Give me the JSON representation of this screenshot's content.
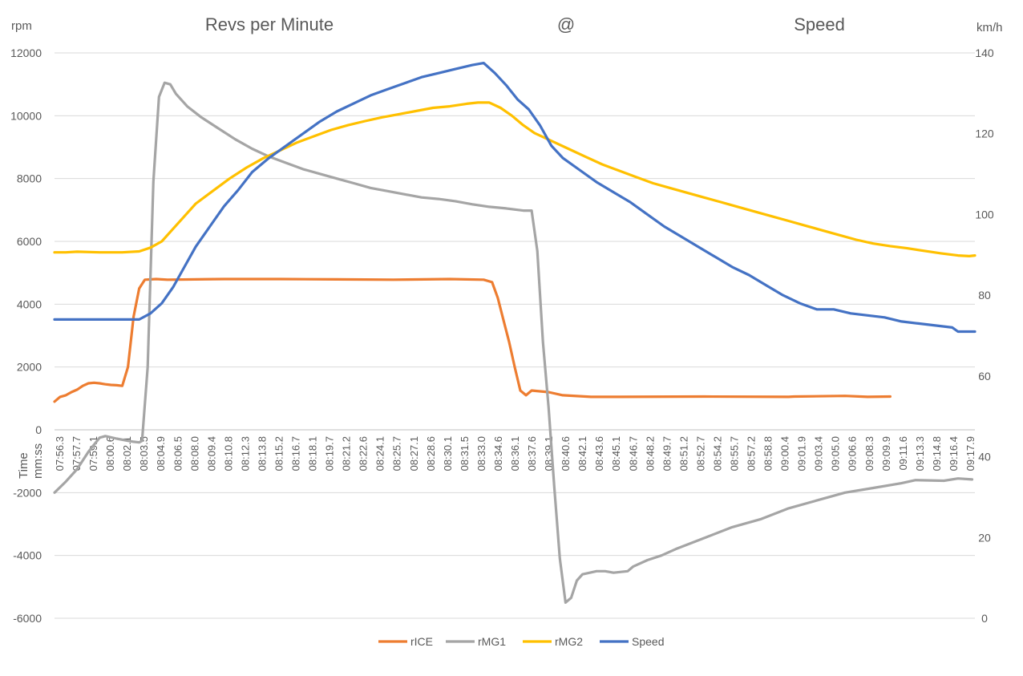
{
  "chart_data": {
    "type": "line",
    "title_parts": [
      "Revs per Minute",
      "@",
      "Speed"
    ],
    "ylabel_left": "rpm",
    "ylabel_right": "km/h",
    "xlabel": "Time mm:ss",
    "xlabel_parts": [
      "Time",
      "mm:ss"
    ],
    "ylim_left": [
      -6000,
      12000
    ],
    "ylim_right": [
      0,
      140
    ],
    "yticks_left": [
      -6000,
      -4000,
      -2000,
      0,
      2000,
      4000,
      6000,
      8000,
      10000,
      12000
    ],
    "yticks_right": [
      0,
      20,
      40,
      60,
      80,
      100,
      120,
      140
    ],
    "ytick_labels_left": [
      "-6000",
      "-4000",
      "-2000",
      "0",
      "2000",
      "4000",
      "6000",
      "8000",
      "10000",
      "12000"
    ],
    "ytick_labels_right": [
      "0",
      "20",
      "40",
      "60",
      "80",
      "100",
      "120",
      "140"
    ],
    "x_tick_labels": [
      "07:56.3",
      "07:57.7",
      "07:59.1",
      "08:00.6",
      "08:02.1",
      "08:03.5",
      "08:04.9",
      "08:06.5",
      "08:08.0",
      "08:09.4",
      "08:10.8",
      "08:12.3",
      "08:13.8",
      "08:15.2",
      "08:16.7",
      "08:18.1",
      "08:19.7",
      "08:21.2",
      "08:22.6",
      "08:24.1",
      "08:25.7",
      "08:27.1",
      "08:28.6",
      "08:30.1",
      "08:31.5",
      "08:33.0",
      "08:34.6",
      "08:36.1",
      "08:37.6",
      "08:39.1",
      "08:40.6",
      "08:42.1",
      "08:43.6",
      "08:45.1",
      "08:46.7",
      "08:48.2",
      "08:49.7",
      "08:51.2",
      "08:52.7",
      "08:54.2",
      "08:55.7",
      "08:57.2",
      "08:58.8",
      "09:00.4",
      "09:01.9",
      "09:03.4",
      "09:05.0",
      "09:06.6",
      "09:08.3",
      "09:09.9",
      "09:11.6",
      "09:13.3",
      "09:14.8",
      "09:16.4",
      "09:17.9"
    ],
    "grid": true,
    "legend_position": "bottom",
    "series": [
      {
        "name": "rICE",
        "axis": "left",
        "color": "#ED7D31",
        "points": [
          [
            0,
            900
          ],
          [
            2,
            1050
          ],
          [
            4,
            1100
          ],
          [
            6,
            1200
          ],
          [
            8,
            1280
          ],
          [
            10,
            1400
          ],
          [
            12,
            1480
          ],
          [
            14,
            1500
          ],
          [
            16,
            1480
          ],
          [
            18,
            1450
          ],
          [
            20,
            1430
          ],
          [
            22,
            1420
          ],
          [
            24,
            1400
          ],
          [
            26,
            2000
          ],
          [
            28,
            3600
          ],
          [
            30,
            4500
          ],
          [
            32,
            4780
          ],
          [
            36,
            4800
          ],
          [
            40,
            4780
          ],
          [
            60,
            4800
          ],
          [
            80,
            4800
          ],
          [
            100,
            4790
          ],
          [
            120,
            4780
          ],
          [
            140,
            4800
          ],
          [
            152,
            4780
          ],
          [
            155,
            4700
          ],
          [
            157,
            4200
          ],
          [
            159,
            3500
          ],
          [
            161,
            2800
          ],
          [
            163,
            2000
          ],
          [
            165,
            1250
          ],
          [
            167,
            1100
          ],
          [
            169,
            1250
          ],
          [
            175,
            1200
          ],
          [
            180,
            1100
          ],
          [
            190,
            1050
          ],
          [
            200,
            1050
          ],
          [
            230,
            1060
          ],
          [
            260,
            1050
          ],
          [
            262,
            1060
          ],
          [
            280,
            1080
          ],
          [
            288,
            1050
          ],
          [
            296,
            1060
          ]
        ]
      },
      {
        "name": "rMG1",
        "axis": "left",
        "color": "#A5A5A5",
        "points": [
          [
            0,
            -2000
          ],
          [
            4,
            -1650
          ],
          [
            8,
            -1250
          ],
          [
            12,
            -700
          ],
          [
            16,
            -250
          ],
          [
            18,
            -200
          ],
          [
            22,
            -280
          ],
          [
            26,
            -350
          ],
          [
            28,
            -380
          ],
          [
            30,
            -400
          ],
          [
            31,
            -350
          ],
          [
            33,
            2000
          ],
          [
            35,
            7900
          ],
          [
            37,
            10600
          ],
          [
            39,
            11050
          ],
          [
            41,
            11000
          ],
          [
            43,
            10700
          ],
          [
            47,
            10300
          ],
          [
            52,
            9950
          ],
          [
            58,
            9600
          ],
          [
            64,
            9250
          ],
          [
            70,
            8950
          ],
          [
            76,
            8700
          ],
          [
            82,
            8500
          ],
          [
            88,
            8300
          ],
          [
            94,
            8150
          ],
          [
            100,
            8000
          ],
          [
            106,
            7850
          ],
          [
            112,
            7700
          ],
          [
            118,
            7600
          ],
          [
            124,
            7500
          ],
          [
            130,
            7400
          ],
          [
            136,
            7350
          ],
          [
            142,
            7280
          ],
          [
            148,
            7180
          ],
          [
            154,
            7100
          ],
          [
            160,
            7050
          ],
          [
            166,
            6980
          ],
          [
            169,
            6980
          ],
          [
            171,
            5700
          ],
          [
            173,
            2800
          ],
          [
            175,
            700
          ],
          [
            177,
            -1800
          ],
          [
            179,
            -4100
          ],
          [
            181,
            -5500
          ],
          [
            183,
            -5350
          ],
          [
            185,
            -4800
          ],
          [
            187,
            -4600
          ],
          [
            192,
            -4500
          ],
          [
            195,
            -4500
          ],
          [
            198,
            -4550
          ],
          [
            203,
            -4500
          ],
          [
            205,
            -4350
          ],
          [
            210,
            -4150
          ],
          [
            215,
            -4000
          ],
          [
            220,
            -3800
          ],
          [
            230,
            -3450
          ],
          [
            240,
            -3100
          ],
          [
            250,
            -2850
          ],
          [
            260,
            -2500
          ],
          [
            270,
            -2250
          ],
          [
            280,
            -2000
          ],
          [
            290,
            -1850
          ],
          [
            300,
            -1700
          ],
          [
            305,
            -1600
          ],
          [
            315,
            -1620
          ],
          [
            320,
            -1550
          ],
          [
            325,
            -1580
          ]
        ]
      },
      {
        "name": "rMG2",
        "axis": "left",
        "color": "#FFC000",
        "points": [
          [
            0,
            5650
          ],
          [
            4,
            5650
          ],
          [
            8,
            5670
          ],
          [
            16,
            5650
          ],
          [
            24,
            5650
          ],
          [
            30,
            5680
          ],
          [
            34,
            5800
          ],
          [
            38,
            6000
          ],
          [
            42,
            6400
          ],
          [
            46,
            6800
          ],
          [
            50,
            7200
          ],
          [
            56,
            7600
          ],
          [
            62,
            8000
          ],
          [
            68,
            8350
          ],
          [
            74,
            8650
          ],
          [
            80,
            8900
          ],
          [
            86,
            9150
          ],
          [
            92,
            9350
          ],
          [
            98,
            9550
          ],
          [
            104,
            9700
          ],
          [
            110,
            9830
          ],
          [
            116,
            9950
          ],
          [
            122,
            10050
          ],
          [
            128,
            10150
          ],
          [
            134,
            10250
          ],
          [
            140,
            10300
          ],
          [
            146,
            10380
          ],
          [
            150,
            10420
          ],
          [
            154,
            10420
          ],
          [
            158,
            10250
          ],
          [
            162,
            10000
          ],
          [
            166,
            9700
          ],
          [
            170,
            9450
          ],
          [
            176,
            9200
          ],
          [
            182,
            8950
          ],
          [
            188,
            8700
          ],
          [
            194,
            8450
          ],
          [
            200,
            8250
          ],
          [
            206,
            8050
          ],
          [
            212,
            7850
          ],
          [
            218,
            7700
          ],
          [
            224,
            7550
          ],
          [
            230,
            7400
          ],
          [
            236,
            7250
          ],
          [
            242,
            7100
          ],
          [
            248,
            6950
          ],
          [
            254,
            6800
          ],
          [
            260,
            6650
          ],
          [
            266,
            6500
          ],
          [
            272,
            6350
          ],
          [
            278,
            6200
          ],
          [
            284,
            6050
          ],
          [
            290,
            5930
          ],
          [
            296,
            5850
          ],
          [
            302,
            5780
          ],
          [
            308,
            5700
          ],
          [
            314,
            5620
          ],
          [
            320,
            5550
          ],
          [
            324,
            5530
          ],
          [
            326,
            5550
          ]
        ]
      },
      {
        "name": "Speed",
        "axis": "right",
        "color": "#4472C4",
        "points": [
          [
            0,
            74
          ],
          [
            30,
            74
          ],
          [
            34,
            75.5
          ],
          [
            38,
            78
          ],
          [
            42,
            82
          ],
          [
            46,
            87
          ],
          [
            50,
            92
          ],
          [
            55,
            97
          ],
          [
            60,
            102
          ],
          [
            65,
            106
          ],
          [
            70,
            110.5
          ],
          [
            76,
            114
          ],
          [
            82,
            117
          ],
          [
            88,
            120
          ],
          [
            94,
            123
          ],
          [
            100,
            125.5
          ],
          [
            106,
            127.5
          ],
          [
            112,
            129.5
          ],
          [
            118,
            131
          ],
          [
            124,
            132.5
          ],
          [
            130,
            134
          ],
          [
            136,
            135
          ],
          [
            142,
            136
          ],
          [
            148,
            137
          ],
          [
            152,
            137.5
          ],
          [
            156,
            135
          ],
          [
            160,
            132
          ],
          [
            164,
            128.5
          ],
          [
            168,
            126
          ],
          [
            172,
            122
          ],
          [
            176,
            117
          ],
          [
            180,
            114
          ],
          [
            186,
            111
          ],
          [
            192,
            108
          ],
          [
            198,
            105.5
          ],
          [
            204,
            103
          ],
          [
            210,
            100
          ],
          [
            216,
            97
          ],
          [
            222,
            94.5
          ],
          [
            228,
            92
          ],
          [
            234,
            89.5
          ],
          [
            240,
            87
          ],
          [
            246,
            85
          ],
          [
            252,
            82.5
          ],
          [
            258,
            80
          ],
          [
            264,
            78
          ],
          [
            270,
            76.5
          ],
          [
            276,
            76.5
          ],
          [
            282,
            75.5
          ],
          [
            288,
            75
          ],
          [
            294,
            74.5
          ],
          [
            300,
            73.5
          ],
          [
            306,
            73
          ],
          [
            312,
            72.5
          ],
          [
            318,
            72
          ],
          [
            320,
            71
          ],
          [
            326,
            71
          ]
        ]
      }
    ],
    "x_max": 326
  }
}
